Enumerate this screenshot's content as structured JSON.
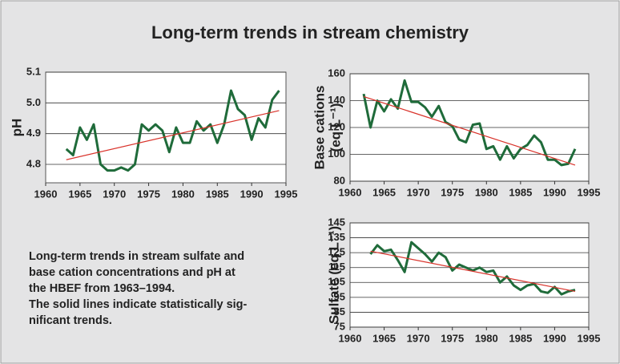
{
  "title": "Long-term trends in stream chemistry",
  "caption": [
    "Long-term trends in stream sulfate and",
    "base cation concentrations and pH at",
    "the HBEF from 1963–1994.",
    "The solid lines indicate statistically sig-",
    "nificant trends."
  ],
  "chart_data": [
    {
      "type": "line",
      "ylabel": [
        "pH"
      ],
      "xlim": [
        1960,
        1995
      ],
      "xticks": [
        1960,
        1965,
        1970,
        1975,
        1980,
        1985,
        1990,
        1995
      ],
      "ylim": [
        4.74,
        5.1
      ],
      "yticks": [
        4.8,
        4.9,
        {
          "value": 5,
          "label": "5.0"
        },
        5.1
      ],
      "grid": true,
      "series": [
        {
          "color": "#1f6b3a",
          "x": [
            1963,
            1964,
            1965,
            1966,
            1967,
            1968,
            1969,
            1970,
            1971,
            1972,
            1973,
            1974,
            1975,
            1976,
            1977,
            1978,
            1979,
            1980,
            1981,
            1982,
            1983,
            1984,
            1985,
            1986,
            1987,
            1988,
            1989,
            1990,
            1991,
            1992,
            1993,
            1994
          ],
          "values": [
            4.85,
            4.83,
            4.92,
            4.88,
            4.93,
            4.8,
            4.78,
            4.78,
            4.79,
            4.78,
            4.8,
            4.93,
            4.91,
            4.93,
            4.91,
            4.84,
            4.92,
            4.87,
            4.87,
            4.94,
            4.91,
            4.93,
            4.87,
            4.93,
            5.04,
            4.98,
            4.96,
            4.88,
            4.95,
            4.92,
            5.01,
            5.04
          ]
        },
        {
          "color": "#d9332b",
          "x": [
            1963,
            1994
          ],
          "values": [
            4.815,
            4.975
          ]
        }
      ]
    },
    {
      "type": "line",
      "ylabel": [
        "Base cations",
        "(eq L⁻¹)"
      ],
      "xlim": [
        1960,
        1995
      ],
      "xticks": [
        1960,
        1965,
        1970,
        1975,
        1980,
        1985,
        1990,
        1995
      ],
      "ylim": [
        80,
        160
      ],
      "yticks": [
        80,
        100,
        120,
        140,
        160
      ],
      "grid": true,
      "series": [
        {
          "color": "#1f6b3a",
          "x": [
            1962,
            1963,
            1964,
            1965,
            1966,
            1967,
            1968,
            1969,
            1970,
            1971,
            1972,
            1973,
            1974,
            1975,
            1976,
            1977,
            1978,
            1979,
            1980,
            1981,
            1982,
            1983,
            1984,
            1985,
            1986,
            1987,
            1988,
            1989,
            1990,
            1991,
            1992,
            1993
          ],
          "values": [
            145,
            120,
            140,
            132,
            141,
            134,
            155,
            139,
            139,
            135,
            128,
            136,
            124,
            121,
            111,
            109,
            122,
            123,
            104,
            106,
            96,
            106,
            97,
            104,
            107,
            114,
            109,
            96,
            96,
            92,
            93,
            104
          ]
        },
        {
          "color": "#d9332b",
          "x": [
            1962,
            1993
          ],
          "values": [
            143,
            92
          ]
        }
      ]
    },
    {
      "type": "line",
      "ylabel": [
        "Sulfate (eq L⁻¹)"
      ],
      "xlim": [
        1960,
        1995
      ],
      "xticks": [
        1960,
        1965,
        1970,
        1975,
        1980,
        1985,
        1990,
        1995
      ],
      "ylim": [
        75,
        145
      ],
      "yticks": [
        75,
        85,
        95,
        105,
        115,
        125,
        135,
        145
      ],
      "grid": true,
      "series": [
        {
          "color": "#1f6b3a",
          "x": [
            1963,
            1964,
            1965,
            1966,
            1967,
            1968,
            1969,
            1970,
            1971,
            1972,
            1973,
            1974,
            1975,
            1976,
            1977,
            1978,
            1979,
            1980,
            1981,
            1982,
            1983,
            1984,
            1985,
            1986,
            1987,
            1988,
            1989,
            1990,
            1991,
            1992,
            1993
          ],
          "values": [
            124,
            130,
            126,
            127,
            120,
            112,
            132,
            128,
            124,
            119,
            125,
            122,
            113,
            117,
            115,
            113,
            115,
            112,
            113,
            105,
            109,
            103,
            100,
            103,
            104,
            99,
            98,
            102,
            97,
            99,
            100
          ]
        },
        {
          "color": "#d9332b",
          "x": [
            1963,
            1993
          ],
          "values": [
            126,
            99
          ]
        }
      ]
    }
  ]
}
